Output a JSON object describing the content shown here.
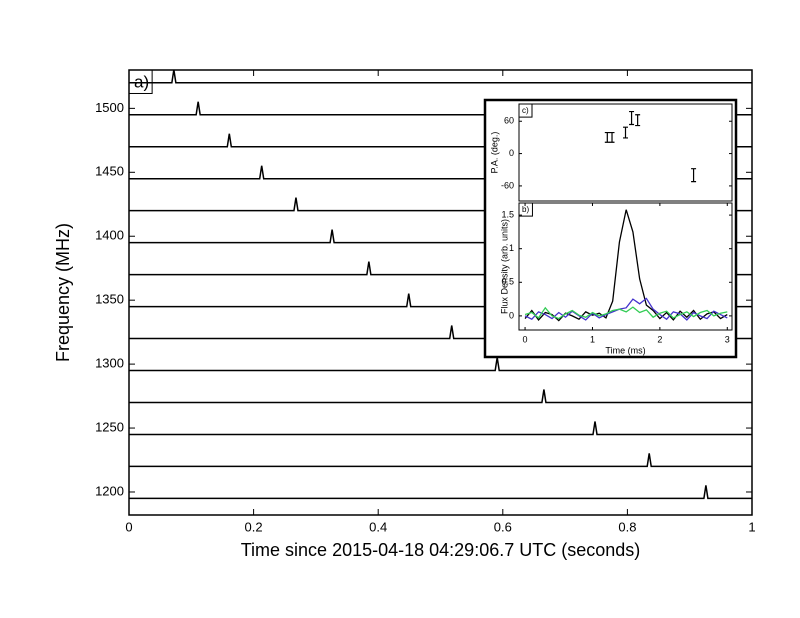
{
  "chart_data": [
    {
      "type": "waterfall",
      "panel_label": "a)",
      "x_label": "Time since 2015-04-18 04:29:06.7 UTC (seconds)",
      "y_label": "Frequency (MHz)",
      "x": [
        0.072,
        0.111,
        0.161,
        0.213,
        0.268,
        0.326,
        0.385,
        0.449,
        0.518,
        0.591,
        0.666,
        0.748,
        0.835,
        0.926
      ],
      "values": [
        1520,
        1495,
        1470,
        1445,
        1420,
        1395,
        1370,
        1345,
        1320,
        1295,
        1270,
        1245,
        1220,
        1195
      ],
      "color": "#000000",
      "xlim": [
        0,
        1
      ],
      "xticks": [
        0,
        0.2,
        0.4,
        0.6,
        0.8,
        1
      ],
      "ylim": [
        1182,
        1530
      ],
      "yticks": [
        1200,
        1250,
        1300,
        1350,
        1400,
        1450,
        1500
      ]
    },
    {
      "type": "errorbar",
      "panel_label": "c)",
      "y_label": "P.A. (deg.)",
      "x": [
        1.22,
        1.29,
        1.49,
        1.58,
        1.67,
        2.5
      ],
      "values": [
        30,
        30,
        39,
        66,
        62,
        -40
      ],
      "errors": [
        9,
        9,
        10,
        12,
        10,
        12
      ],
      "color": "#000000",
      "xlim": [
        -0.09,
        3.07
      ],
      "ylim": [
        -88,
        92
      ],
      "yticks": [
        60,
        0,
        -60
      ]
    },
    {
      "type": "line",
      "panel_label": "b)",
      "x_label": "Time (ms)",
      "y_label": "Flux Density (arb. units)",
      "x": [
        0,
        0.1,
        0.2,
        0.3,
        0.4,
        0.5,
        0.6,
        0.7,
        0.8,
        0.9,
        1,
        1.1,
        1.2,
        1.3,
        1.4,
        1.5,
        1.6,
        1.7,
        1.8,
        1.9,
        2,
        2.1,
        2.2,
        2.3,
        2.4,
        2.5,
        2.6,
        2.7,
        2.8,
        2.9,
        3
      ],
      "series": [
        {
          "color": "#000000",
          "values": [
            -0.04,
            0.08,
            -0.06,
            0.05,
            0.02,
            -0.07,
            0.04,
            0.0,
            -0.05,
            0.06,
            0.01,
            0.04,
            -0.03,
            0.22,
            1.1,
            1.58,
            1.25,
            0.55,
            0.16,
            0.08,
            -0.04,
            0.05,
            -0.06,
            0.07,
            -0.02,
            0.08,
            -0.05,
            0.03,
            0.06,
            -0.04,
            0.02
          ]
        },
        {
          "color": "#4433cc",
          "values": [
            0.0,
            -0.05,
            0.06,
            0.02,
            -0.04,
            0.05,
            -0.02,
            0.07,
            0.0,
            -0.06,
            0.04,
            -0.03,
            0.02,
            0.06,
            0.1,
            0.12,
            0.25,
            0.18,
            0.26,
            0.1,
            0.02,
            -0.05,
            0.06,
            0.03,
            -0.06,
            0.05,
            0.0,
            -0.04,
            0.07,
            0.02,
            -0.03
          ]
        },
        {
          "color": "#33cc55",
          "values": [
            0.02,
            0.05,
            -0.03,
            0.12,
            0.0,
            -0.04,
            0.03,
            0.08,
            0.01,
            -0.02,
            0.05,
            0.0,
            0.03,
            0.08,
            0.1,
            0.06,
            0.13,
            0.05,
            0.09,
            -0.02,
            0.04,
            0.07,
            -0.03,
            0.02,
            0.06,
            -0.01,
            0.05,
            0.08,
            0.0,
            0.04,
            0.06
          ]
        }
      ],
      "xlim": [
        -0.09,
        3.07
      ],
      "xticks": [
        0,
        1,
        2,
        3
      ],
      "ylim": [
        -0.21,
        1.68
      ],
      "yticks": [
        0,
        0.5,
        1,
        1.5
      ]
    }
  ]
}
